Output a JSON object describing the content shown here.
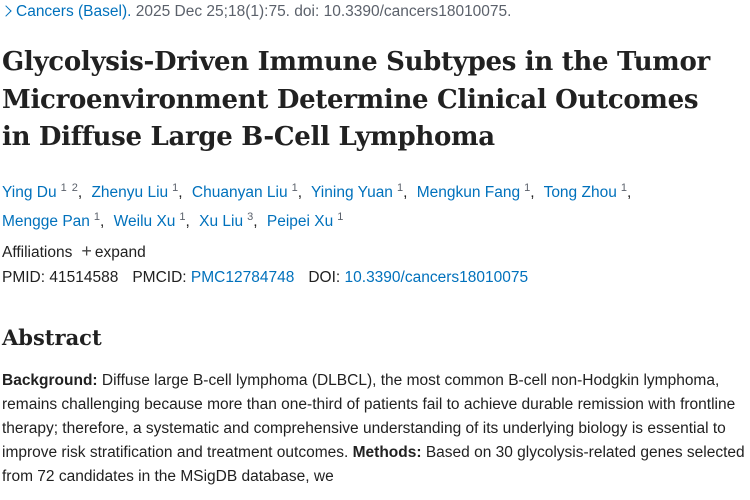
{
  "citation": {
    "journal": "Cancers (Basel).",
    "details": "2025 Dec 25;18(1):75. doi: 10.3390/cancers18010075."
  },
  "title": "Glycolysis-Driven Immune Subtypes in the Tumor Microenvironment Determine Clinical Outcomes in Diffuse Large B-Cell Lymphoma",
  "authors": [
    {
      "name": "Ying Du",
      "affiliations": [
        "1",
        "2"
      ]
    },
    {
      "name": "Zhenyu Liu",
      "affiliations": [
        "1"
      ]
    },
    {
      "name": "Chuanyan Liu",
      "affiliations": [
        "1"
      ]
    },
    {
      "name": "Yining Yuan",
      "affiliations": [
        "1"
      ]
    },
    {
      "name": "Mengkun Fang",
      "affiliations": [
        "1"
      ]
    },
    {
      "name": "Tong Zhou",
      "affiliations": [
        "1"
      ]
    },
    {
      "name": "Mengge Pan",
      "affiliations": [
        "1"
      ]
    },
    {
      "name": "Weilu Xu",
      "affiliations": [
        "1"
      ]
    },
    {
      "name": "Xu Liu",
      "affiliations": [
        "3"
      ]
    },
    {
      "name": "Peipei Xu",
      "affiliations": [
        "1"
      ]
    }
  ],
  "affiliations": {
    "label": "Affiliations",
    "toggle": "expand"
  },
  "identifiers": [
    {
      "label": "PMID:",
      "value": "41514588"
    },
    {
      "label": "PMCID:",
      "value": "PMC12784748"
    },
    {
      "label": "DOI:",
      "value": "10.3390/cancers18010075"
    }
  ],
  "abstract": {
    "heading": "Abstract",
    "sections": [
      {
        "label": "Background:",
        "text": "Diffuse large B-cell lymphoma (DLBCL), the most common B-cell non-Hodgkin lymphoma, remains challenging because more than one-third of patients fail to achieve durable remission with frontline therapy; therefore, a systematic and comprehensive understanding of its underlying biology is essential to improve risk stratification and treatment outcomes."
      },
      {
        "label": "Methods:",
        "text": "Based on 30 glycolysis-related genes selected from 72 candidates in the MSigDB database, we"
      }
    ]
  }
}
